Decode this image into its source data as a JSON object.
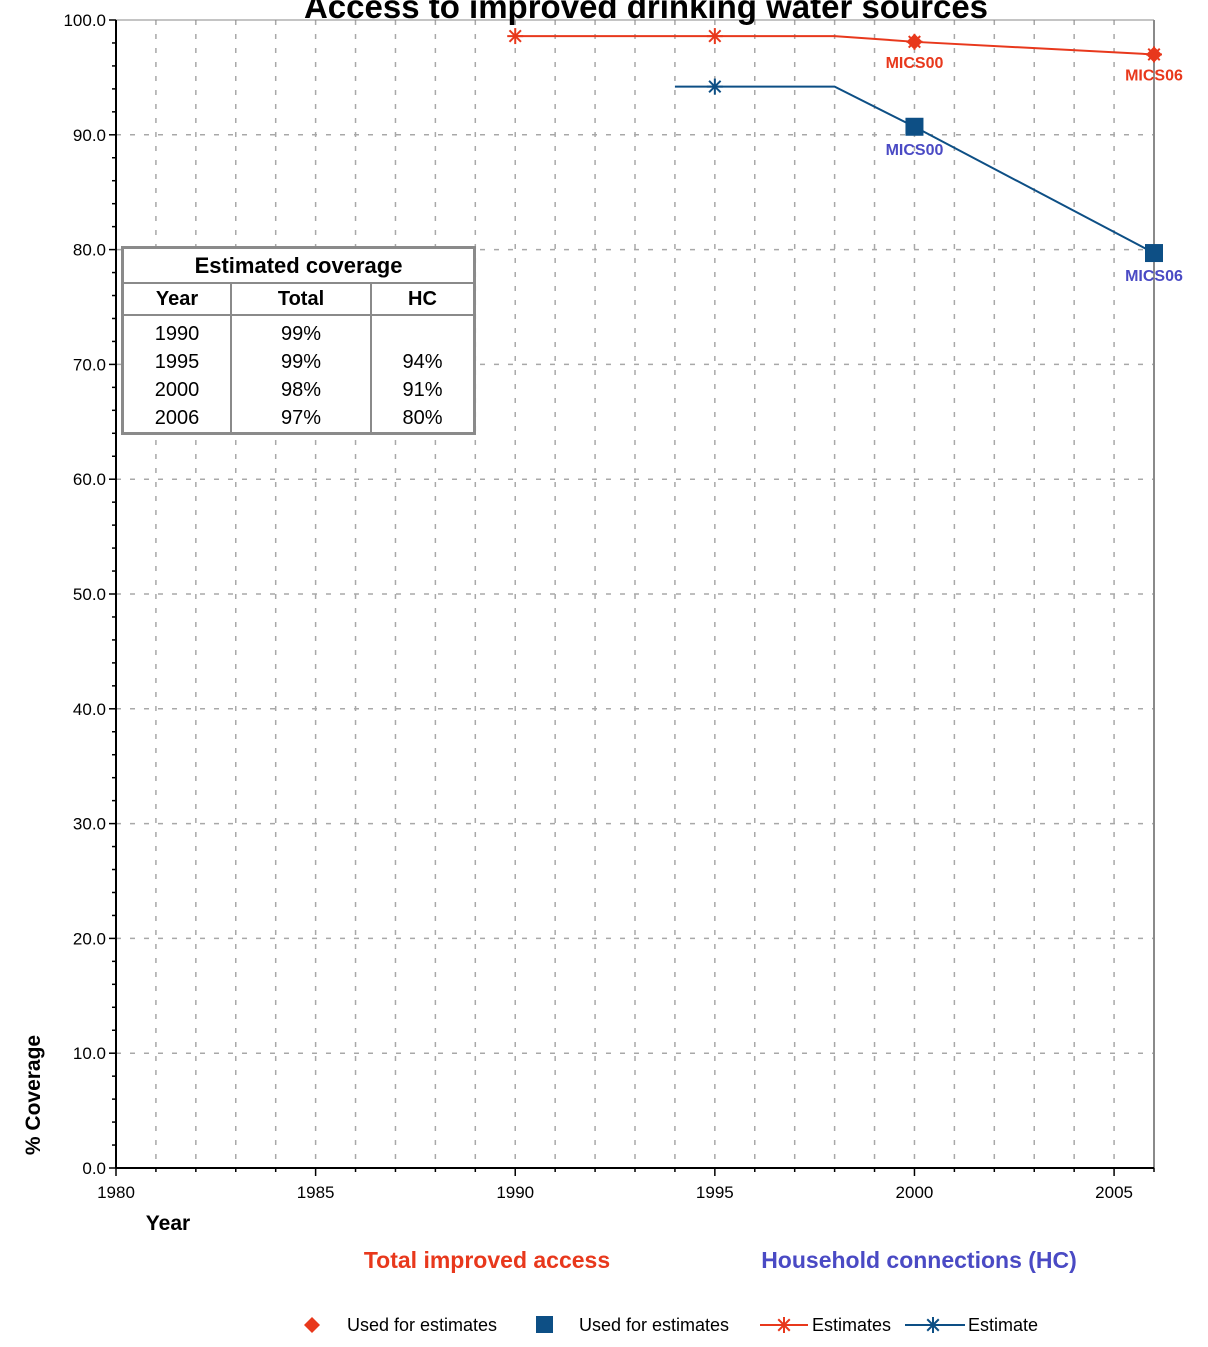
{
  "chart_data": {
    "type": "line",
    "title": "Access to improved drinking water sources",
    "xlabel": "Year",
    "ylabel": "% Coverage",
    "xlim": [
      1980,
      2006
    ],
    "ylim": [
      0,
      100
    ],
    "x_ticks": [
      1980,
      1985,
      1990,
      1995,
      2000,
      2005
    ],
    "y_ticks": [
      "0.0",
      "10.0",
      "20.0",
      "30.0",
      "40.0",
      "50.0",
      "60.0",
      "70.0",
      "80.0",
      "90.0",
      "100.0"
    ],
    "grid": true,
    "colors": {
      "total": "#e8381c",
      "hc": "#0d4f85",
      "hc_label": "#4a4ac4"
    },
    "series": [
      {
        "name": "Estimates",
        "group": "total",
        "x": [
          1990,
          1995,
          1998,
          2000,
          2006
        ],
        "y": [
          98.6,
          98.6,
          98.6,
          98.1,
          97.0
        ],
        "marker_x": [
          1990,
          1995,
          2000,
          2006
        ]
      },
      {
        "name": "Estimate",
        "group": "hc",
        "x": [
          1994,
          1995,
          1998,
          2000,
          2006
        ],
        "y": [
          94.2,
          94.2,
          94.2,
          90.7,
          79.7
        ],
        "marker_x": [
          1995
        ]
      }
    ],
    "survey_points": [
      {
        "group": "total",
        "x": 2000,
        "y": 98.1,
        "label": "MICS00"
      },
      {
        "group": "total",
        "x": 2006,
        "y": 97.0,
        "label": "MICS06"
      },
      {
        "group": "hc",
        "x": 2000,
        "y": 90.7,
        "label": "MICS00"
      },
      {
        "group": "hc",
        "x": 2006,
        "y": 79.7,
        "label": "MICS06"
      }
    ],
    "subheads": {
      "total": "Total improved access",
      "hc": "Household connections (HC)"
    },
    "legend": [
      {
        "label": "Used for estimates",
        "symbol": "diamond",
        "group": "total"
      },
      {
        "label": "Used for estimates",
        "symbol": "square",
        "group": "hc"
      },
      {
        "label": "Estimates",
        "symbol": "line-star",
        "group": "total"
      },
      {
        "label": "Estimate",
        "symbol": "line-star",
        "group": "hc"
      }
    ]
  },
  "coverage_table": {
    "title": "Estimated coverage",
    "headers": [
      "Year",
      "Total",
      "HC"
    ],
    "rows": [
      [
        "1990",
        "99%",
        ""
      ],
      [
        "1995",
        "99%",
        "94%"
      ],
      [
        "2000",
        "98%",
        "91%"
      ],
      [
        "2006",
        "97%",
        "80%"
      ]
    ]
  }
}
